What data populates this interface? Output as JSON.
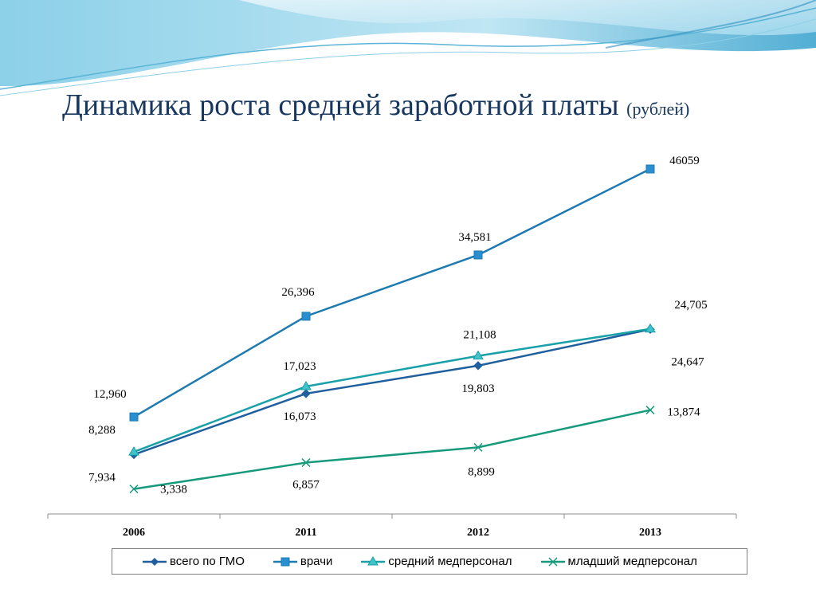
{
  "slide": {
    "title": "Динамика роста средней заработной платы",
    "title_unit": "(рублей)"
  },
  "colors": {
    "title": "#17375e",
    "total": "#1f5f9e",
    "doctors": "#1e7bb0",
    "mid_staff": "#1aa0a8",
    "junior_staff": "#179a7c",
    "decor_wave": "#5ab4d6"
  },
  "chart_data": {
    "type": "line",
    "categories": [
      "2006",
      "2011",
      "2012",
      "2013"
    ],
    "ylim": [
      0,
      50000
    ],
    "grid": false,
    "legend_position": "bottom",
    "series": [
      {
        "key": "total",
        "name": "всего по ГМО",
        "marker": "diamond",
        "values": [
          7934,
          16073,
          19803,
          24647
        ],
        "labels": [
          "7,934",
          "16,073",
          "19,803",
          "24,647"
        ]
      },
      {
        "key": "doctors",
        "name": "врачи",
        "marker": "square",
        "values": [
          12960,
          26396,
          34581,
          46059
        ],
        "labels": [
          "12,960",
          "26,396",
          "34,581",
          "46059"
        ]
      },
      {
        "key": "mid_staff",
        "name": "средний медперсонал",
        "marker": "triangle",
        "values": [
          8288,
          17023,
          21108,
          24705
        ],
        "labels": [
          "8,288",
          "17,023",
          "21,108",
          "24,705"
        ]
      },
      {
        "key": "junior_staff",
        "name": "младший медперсонал",
        "marker": "x",
        "values": [
          3338,
          6857,
          8899,
          13874
        ],
        "labels": [
          "3,338",
          "6,857",
          "8,899",
          "13,874"
        ]
      }
    ]
  }
}
